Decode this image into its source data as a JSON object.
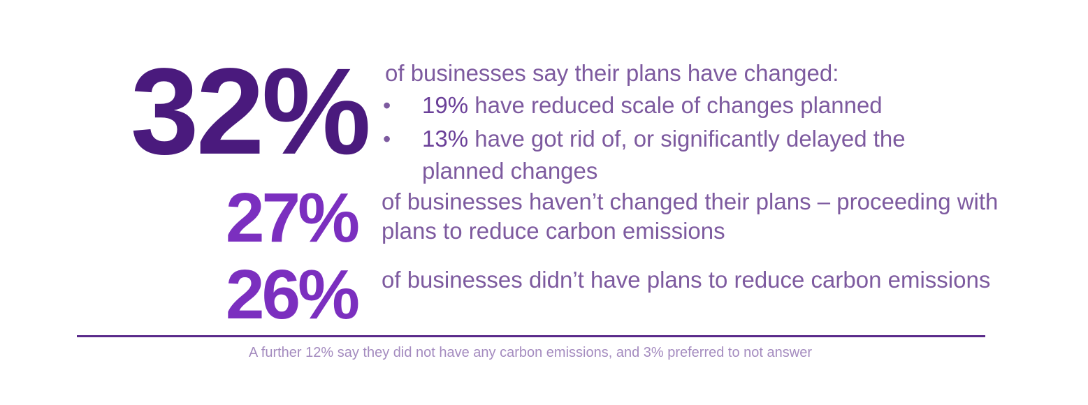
{
  "stat1": {
    "big": "32%",
    "text": "of businesses say their plans have changed:",
    "bullets": [
      {
        "marker": "•",
        "pct": "19%",
        "text": "have reduced scale of changes planned"
      },
      {
        "marker": "•",
        "pct": "13%",
        "text": "have got rid of, or significantly delayed the planned changes"
      }
    ]
  },
  "stat2": {
    "big": "27%",
    "text": "of businesses haven’t changed their plans – proceeding with plans to reduce carbon emissions"
  },
  "stat3": {
    "big": "26%",
    "text": "of businesses didn’t have plans to reduce carbon emissions"
  },
  "footnote": "A further 12% say they did not have any carbon emissions, and 3% preferred to not answer",
  "colors": {
    "dark_purple": "#4a1a7d",
    "bright_purple": "#7b2fbf",
    "text_purple": "#7d5a9f",
    "rule": "#5a2a8a",
    "footnote": "#a48bbf"
  }
}
